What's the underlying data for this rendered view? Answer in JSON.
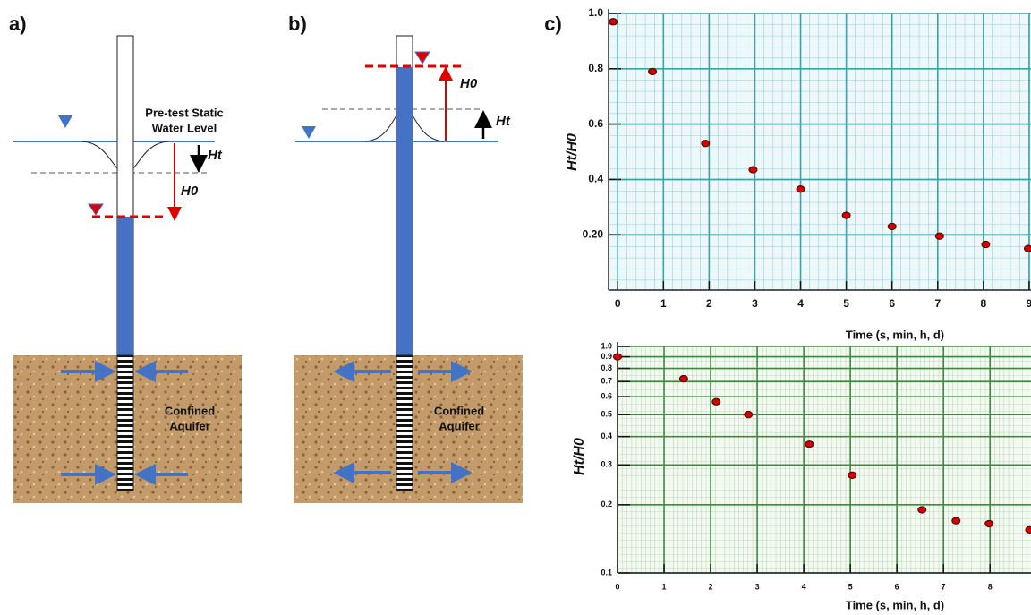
{
  "diagram_a": {
    "label": "a)",
    "static_level": [
      "Pre-test Static",
      "Water Level"
    ],
    "ht": "Ht",
    "h0": "H0",
    "aquifer": [
      "Confined",
      "Aquifer"
    ]
  },
  "diagram_b": {
    "label": "b)",
    "ht": "Ht",
    "h0": "H0",
    "aquifer": [
      "Confined",
      "Aquifer"
    ]
  },
  "chart_data": [
    {
      "type": "scatter",
      "panel_label": "c)",
      "ylabel": "Ht/H0",
      "xlabel": "Time (s, min, h, d)",
      "color": "#d40000",
      "x": [
        -0.1,
        0.76,
        1.92,
        2.96,
        4.0,
        5.0,
        6.0,
        7.04,
        8.05,
        8.98
      ],
      "values": [
        0.97,
        0.79,
        0.53,
        0.435,
        0.365,
        0.27,
        0.23,
        0.195,
        0.165,
        0.15
      ],
      "xlim": [
        -0.2,
        9.04
      ],
      "ylim": [
        0,
        1
      ],
      "xticks": [
        0,
        1,
        2,
        3,
        4,
        5,
        6,
        7,
        8,
        9
      ],
      "yticks": [
        {
          "value": 1,
          "label": "1.0"
        },
        0.8,
        0.6,
        0.4,
        {
          "value": 0.2,
          "label": "0.20"
        }
      ],
      "log_y": false,
      "grid": true,
      "grid_color": "#3aa3a8"
    },
    {
      "type": "scatter",
      "ylabel": "Ht/H0",
      "xlabel": "Time (s, min, h, d)",
      "color": "#d40000",
      "x": [
        0.0,
        1.42,
        2.12,
        2.81,
        4.12,
        5.04,
        6.54,
        7.27,
        7.98,
        8.85
      ],
      "values": [
        0.9,
        0.72,
        0.57,
        0.5,
        0.37,
        0.27,
        0.19,
        0.17,
        0.165,
        0.155
      ],
      "xlim": [
        0,
        8.88
      ],
      "ylim": [
        0.1,
        1
      ],
      "xticks": [
        0,
        1,
        2,
        3,
        4,
        5,
        6,
        7,
        8
      ],
      "yticks": [
        {
          "value": 1,
          "label": "1.0"
        },
        0.9,
        0.8,
        0.7,
        0.6,
        0.5,
        0.4,
        0.3,
        0.2,
        0.1
      ],
      "log_y": true,
      "grid": true,
      "grid_color": "#3c8a3c"
    }
  ]
}
